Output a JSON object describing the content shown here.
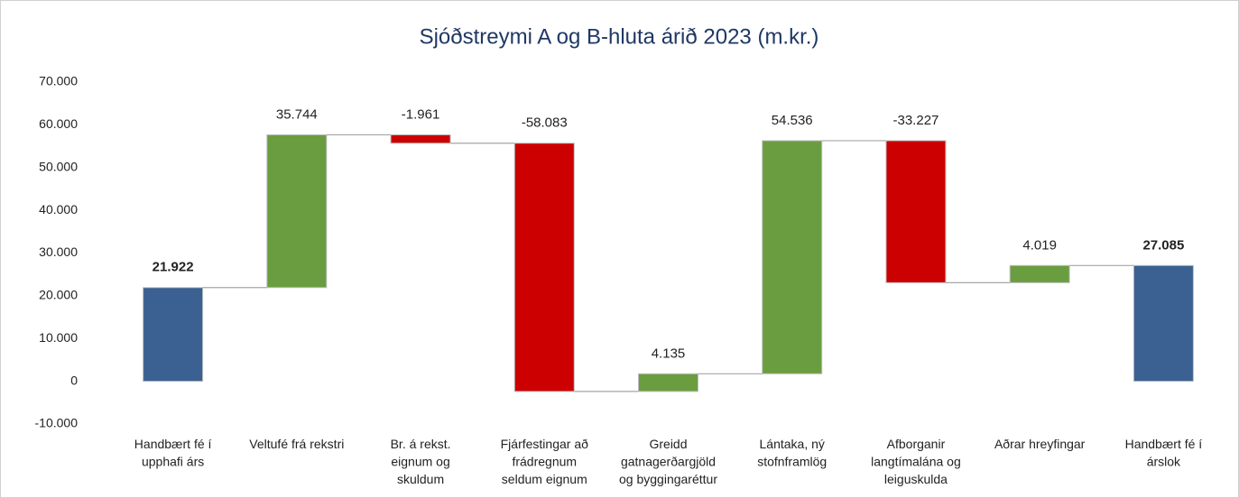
{
  "chart_data": {
    "type": "waterfall",
    "title": "Sjóðstreymi A og B-hluta árið 2023 (m.kr.)",
    "categories": [
      "Handbært fé í\nupphafi árs",
      "Veltufé frá rekstri",
      "Br. á rekst.\neignum og\nskuldum",
      "Fjárfestingar að\nfrádregnum\nseldum eignum",
      "Greidd\ngatnagerðargjöld\nog byggingaréttur",
      "Lántaka, ný\nstofnframlög",
      "Afborganir\nlangtímalána og\nleiguskulda",
      "Aðrar hreyfingar",
      "Handbært fé í\nárslok"
    ],
    "values": [
      21922,
      35744,
      -1961,
      -58083,
      4135,
      54536,
      -33227,
      4019,
      27085
    ],
    "value_labels": [
      "21.922",
      "35.744",
      "-1.961",
      "-58.083",
      "4.135",
      "54.536",
      "-33.227",
      "4.019",
      "27.085"
    ],
    "totals": [
      0,
      8
    ],
    "colors": {
      "total": "#3a6191",
      "increase": "#6a9d40",
      "decrease": "#cc0000"
    },
    "ylim": [
      -10000,
      70000
    ],
    "yticks": [
      {
        "value": -10000,
        "label": "-10.000"
      },
      0,
      {
        "value": 10000,
        "label": "10.000"
      },
      {
        "value": 20000,
        "label": "20.000"
      },
      {
        "value": 30000,
        "label": "30.000"
      },
      {
        "value": 40000,
        "label": "40.000"
      },
      {
        "value": 50000,
        "label": "50.000"
      },
      {
        "value": 60000,
        "label": "60.000"
      },
      {
        "value": 70000,
        "label": "70.000"
      }
    ],
    "grid": false
  }
}
